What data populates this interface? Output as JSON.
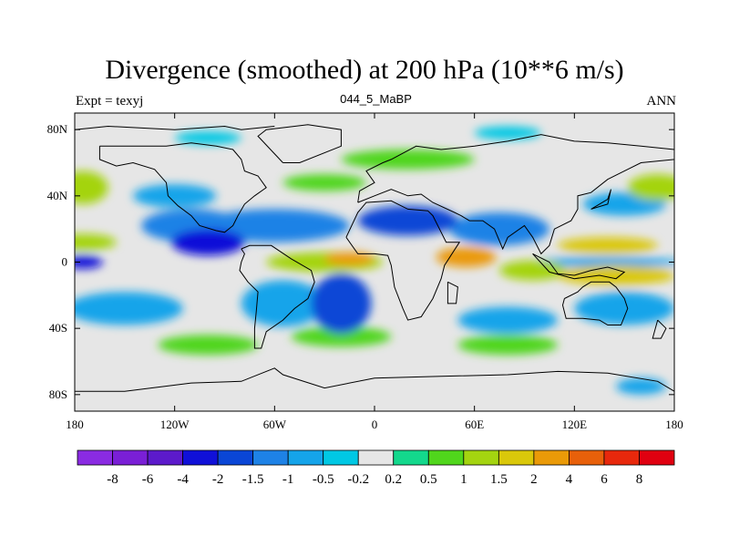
{
  "title": "Divergence (smoothed) at 200 hPa (10**6 m/s)",
  "subtitle_left": "Expt = texyj",
  "subtitle_center": "044_5_MaBP",
  "subtitle_right": "ANN",
  "map": {
    "projection": "cylindrical-equidistant",
    "lon_range": [
      -180,
      180
    ],
    "lat_range": [
      -90,
      90
    ],
    "x_ticks": [
      {
        "value": -180,
        "label": "180"
      },
      {
        "value": -120,
        "label": "120W"
      },
      {
        "value": -60,
        "label": "60W"
      },
      {
        "value": 0,
        "label": "0"
      },
      {
        "value": 60,
        "label": "60E"
      },
      {
        "value": 120,
        "label": "120E"
      },
      {
        "value": 180,
        "label": "180"
      }
    ],
    "y_ticks": [
      {
        "value": 80,
        "label": "80N"
      },
      {
        "value": 40,
        "label": "40N"
      },
      {
        "value": 0,
        "label": "0"
      },
      {
        "value": -40,
        "label": "40S"
      },
      {
        "value": -80,
        "label": "80S"
      }
    ],
    "missing_color": "#e6e6e6",
    "coastline_color": "#000000"
  },
  "colorbar": {
    "labels": [
      "-8",
      "-6",
      "-4",
      "-2",
      "-1.5",
      "-1",
      "-0.5",
      "-0.2",
      "0.2",
      "0.5",
      "1",
      "1.5",
      "2",
      "4",
      "6",
      "8"
    ],
    "colors": [
      "#8a2be2",
      "#7a1fd6",
      "#5c1acb",
      "#1010d8",
      "#0a46d6",
      "#1e82e6",
      "#15a4ea",
      "#00c8e4",
      "#e6e6e6",
      "#13d88c",
      "#50d61c",
      "#a4d410",
      "#dac80a",
      "#ea9a08",
      "#e8600a",
      "#e8280c",
      "#e00010"
    ]
  },
  "regions": [
    {
      "lon": -100,
      "lat": 12,
      "rx": 22,
      "ry": 8,
      "value": -2.6
    },
    {
      "lon": -110,
      "lat": 22,
      "rx": 30,
      "ry": 10,
      "value": -1.2
    },
    {
      "lon": -60,
      "lat": 22,
      "rx": 45,
      "ry": 10,
      "value": -1.4
    },
    {
      "lon": -20,
      "lat": -25,
      "rx": 18,
      "ry": 18,
      "value": -1.7
    },
    {
      "lon": -55,
      "lat": -25,
      "rx": 25,
      "ry": 14,
      "value": -1.0
    },
    {
      "lon": 20,
      "lat": 25,
      "rx": 30,
      "ry": 9,
      "value": -1.6
    },
    {
      "lon": 75,
      "lat": 20,
      "rx": 30,
      "ry": 10,
      "value": -1.2
    },
    {
      "lon": -175,
      "lat": 0,
      "rx": 12,
      "ry": 4,
      "value": -2.5
    },
    {
      "lon": 140,
      "lat": 0,
      "rx": 45,
      "ry": 3,
      "value": -0.6
    },
    {
      "lon": -150,
      "lat": -28,
      "rx": 35,
      "ry": 10,
      "value": -0.8
    },
    {
      "lon": 150,
      "lat": -28,
      "rx": 30,
      "ry": 10,
      "value": -1.0
    },
    {
      "lon": -120,
      "lat": 40,
      "rx": 25,
      "ry": 7,
      "value": -0.7
    },
    {
      "lon": 150,
      "lat": 35,
      "rx": 25,
      "ry": 7,
      "value": -0.7
    },
    {
      "lon": 80,
      "lat": -35,
      "rx": 30,
      "ry": 8,
      "value": -0.8
    },
    {
      "lon": -30,
      "lat": 0,
      "rx": 35,
      "ry": 6,
      "value": 1.3
    },
    {
      "lon": -15,
      "lat": 2,
      "rx": 15,
      "ry": 4,
      "value": 3.0
    },
    {
      "lon": 55,
      "lat": 3,
      "rx": 18,
      "ry": 6,
      "value": 2.2
    },
    {
      "lon": 145,
      "lat": -8,
      "rx": 35,
      "ry": 6,
      "value": 1.7
    },
    {
      "lon": 140,
      "lat": 10,
      "rx": 30,
      "ry": 5,
      "value": 1.5
    },
    {
      "lon": 95,
      "lat": -5,
      "rx": 20,
      "ry": 6,
      "value": 1.1
    },
    {
      "lon": -175,
      "lat": 12,
      "rx": 20,
      "ry": 5,
      "value": 1.0
    },
    {
      "lon": -175,
      "lat": 45,
      "rx": 15,
      "ry": 10,
      "value": 1.3
    },
    {
      "lon": 170,
      "lat": 45,
      "rx": 18,
      "ry": 8,
      "value": 1.4
    },
    {
      "lon": -30,
      "lat": 48,
      "rx": 25,
      "ry": 5,
      "value": 0.6
    },
    {
      "lon": 20,
      "lat": 62,
      "rx": 40,
      "ry": 6,
      "value": 0.6
    },
    {
      "lon": -20,
      "lat": -45,
      "rx": 30,
      "ry": 6,
      "value": 0.5
    },
    {
      "lon": 80,
      "lat": -50,
      "rx": 30,
      "ry": 6,
      "value": 0.6
    },
    {
      "lon": -100,
      "lat": -50,
      "rx": 30,
      "ry": 6,
      "value": 0.6
    },
    {
      "lon": -100,
      "lat": 75,
      "rx": 20,
      "ry": 4,
      "value": -0.5
    },
    {
      "lon": 80,
      "lat": 78,
      "rx": 20,
      "ry": 4,
      "value": -0.5
    },
    {
      "lon": 160,
      "lat": -75,
      "rx": 15,
      "ry": 5,
      "value": -0.7
    }
  ],
  "coastlines": [
    [
      [
        -165,
        70
      ],
      [
        -140,
        70
      ],
      [
        -125,
        70
      ],
      [
        -110,
        72
      ],
      [
        -95,
        70
      ],
      [
        -85,
        68
      ],
      [
        -80,
        62
      ],
      [
        -78,
        55
      ],
      [
        -70,
        52
      ],
      [
        -65,
        45
      ],
      [
        -72,
        40
      ],
      [
        -78,
        35
      ],
      [
        -82,
        28
      ],
      [
        -85,
        22
      ],
      [
        -90,
        18
      ],
      [
        -95,
        19
      ],
      [
        -105,
        22
      ],
      [
        -110,
        28
      ],
      [
        -118,
        34
      ],
      [
        -124,
        40
      ],
      [
        -125,
        48
      ],
      [
        -132,
        56
      ],
      [
        -145,
        60
      ],
      [
        -155,
        58
      ],
      [
        -165,
        62
      ],
      [
        -165,
        70
      ]
    ],
    [
      [
        -80,
        8
      ],
      [
        -75,
        10
      ],
      [
        -62,
        10
      ],
      [
        -50,
        2
      ],
      [
        -38,
        -5
      ],
      [
        -36,
        -12
      ],
      [
        -40,
        -22
      ],
      [
        -48,
        -28
      ],
      [
        -55,
        -35
      ],
      [
        -65,
        -42
      ],
      [
        -68,
        -52
      ],
      [
        -72,
        -52
      ],
      [
        -72,
        -40
      ],
      [
        -71,
        -30
      ],
      [
        -70,
        -18
      ],
      [
        -76,
        -12
      ],
      [
        -81,
        -5
      ],
      [
        -80,
        0
      ],
      [
        -78,
        5
      ],
      [
        -80,
        8
      ]
    ],
    [
      [
        -17,
        15
      ],
      [
        -10,
        30
      ],
      [
        -5,
        36
      ],
      [
        10,
        37
      ],
      [
        20,
        32
      ],
      [
        32,
        31
      ],
      [
        35,
        28
      ],
      [
        43,
        12
      ],
      [
        51,
        12
      ],
      [
        42,
        -2
      ],
      [
        40,
        -10
      ],
      [
        35,
        -22
      ],
      [
        28,
        -33
      ],
      [
        20,
        -35
      ],
      [
        17,
        -28
      ],
      [
        12,
        -15
      ],
      [
        10,
        -2
      ],
      [
        8,
        4
      ],
      [
        0,
        5
      ],
      [
        -10,
        5
      ],
      [
        -17,
        15
      ]
    ],
    [
      [
        -10,
        36
      ],
      [
        -9,
        43
      ],
      [
        0,
        48
      ],
      [
        -5,
        55
      ],
      [
        5,
        60
      ],
      [
        10,
        62
      ],
      [
        25,
        70
      ],
      [
        40,
        68
      ],
      [
        60,
        70
      ],
      [
        80,
        73
      ],
      [
        100,
        77
      ],
      [
        120,
        73
      ],
      [
        140,
        72
      ],
      [
        160,
        70
      ],
      [
        180,
        68
      ],
      [
        180,
        62
      ],
      [
        160,
        60
      ],
      [
        150,
        55
      ],
      [
        140,
        50
      ],
      [
        130,
        42
      ],
      [
        122,
        40
      ],
      [
        122,
        32
      ],
      [
        118,
        25
      ],
      [
        108,
        20
      ],
      [
        105,
        10
      ],
      [
        100,
        5
      ],
      [
        95,
        15
      ],
      [
        90,
        22
      ],
      [
        80,
        15
      ],
      [
        77,
        8
      ],
      [
        72,
        20
      ],
      [
        65,
        25
      ],
      [
        57,
        25
      ],
      [
        52,
        28
      ],
      [
        48,
        30
      ],
      [
        35,
        36
      ],
      [
        28,
        41
      ],
      [
        20,
        40
      ],
      [
        10,
        44
      ],
      [
        0,
        40
      ],
      [
        -10,
        36
      ]
    ],
    [
      [
        114,
        -22
      ],
      [
        113,
        -26
      ],
      [
        115,
        -34
      ],
      [
        125,
        -34
      ],
      [
        135,
        -35
      ],
      [
        140,
        -38
      ],
      [
        148,
        -38
      ],
      [
        152,
        -28
      ],
      [
        150,
        -22
      ],
      [
        145,
        -15
      ],
      [
        141,
        -12
      ],
      [
        136,
        -12
      ],
      [
        130,
        -12
      ],
      [
        125,
        -15
      ],
      [
        122,
        -18
      ],
      [
        114,
        -22
      ]
    ],
    [
      [
        -180,
        -78
      ],
      [
        -150,
        -78
      ],
      [
        -110,
        -73
      ],
      [
        -80,
        -72
      ],
      [
        -60,
        -64
      ],
      [
        -55,
        -68
      ],
      [
        -30,
        -76
      ],
      [
        0,
        -70
      ],
      [
        40,
        -69
      ],
      [
        80,
        -68
      ],
      [
        110,
        -66
      ],
      [
        140,
        -67
      ],
      [
        170,
        -72
      ],
      [
        180,
        -78
      ]
    ],
    [
      [
        -55,
        60
      ],
      [
        -45,
        60
      ],
      [
        -20,
        70
      ],
      [
        -20,
        80
      ],
      [
        -40,
        83
      ],
      [
        -65,
        80
      ],
      [
        -70,
        76
      ],
      [
        -55,
        60
      ]
    ],
    [
      [
        -180,
        80
      ],
      [
        -160,
        82
      ],
      [
        -120,
        80
      ],
      [
        -90,
        82
      ],
      [
        -80,
        80
      ],
      [
        -60,
        82
      ]
    ],
    [
      [
        95,
        5
      ],
      [
        105,
        0
      ],
      [
        110,
        -7
      ],
      [
        120,
        -8
      ],
      [
        130,
        -5
      ],
      [
        140,
        -3
      ],
      [
        150,
        -6
      ],
      [
        145,
        -10
      ],
      [
        135,
        -8
      ],
      [
        120,
        -10
      ],
      [
        105,
        -6
      ],
      [
        95,
        5
      ]
    ],
    [
      [
        130,
        32
      ],
      [
        140,
        38
      ],
      [
        142,
        44
      ],
      [
        140,
        35
      ],
      [
        130,
        32
      ]
    ],
    [
      [
        170,
        -35
      ],
      [
        175,
        -40
      ],
      [
        172,
        -46
      ],
      [
        167,
        -46
      ],
      [
        170,
        -35
      ]
    ],
    [
      [
        44,
        -12
      ],
      [
        50,
        -15
      ],
      [
        49,
        -25
      ],
      [
        44,
        -25
      ],
      [
        44,
        -12
      ]
    ]
  ]
}
